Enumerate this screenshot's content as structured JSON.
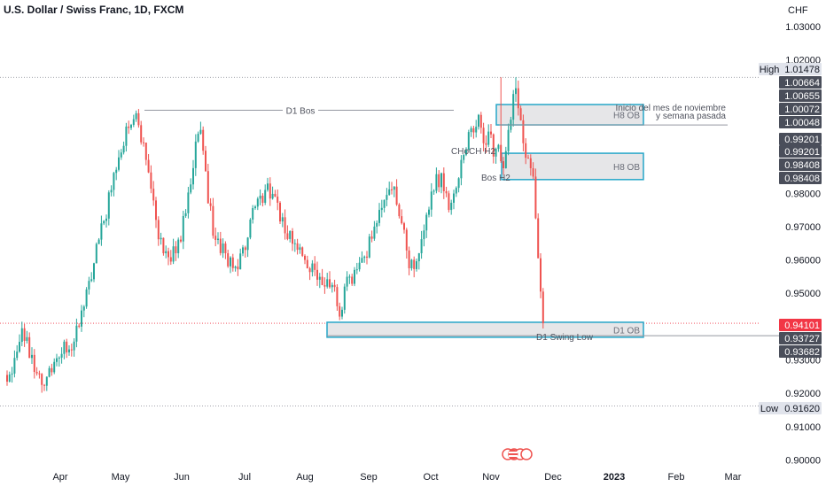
{
  "header": {
    "title": "U.S. Dollar / Swiss Franc, 1D, FXCM",
    "currency": "CHF"
  },
  "colors": {
    "up": "#26a69a",
    "down": "#ef5350",
    "box_border": "#26a6c8",
    "box_fill": "#e6e6e8",
    "current_price": "#f23645",
    "label_dark": "#4a4e5a"
  },
  "chart_data": {
    "type": "candlestick",
    "y_axis": {
      "min": 0.9,
      "max": 1.03,
      "ticks": [
        1.03,
        1.02,
        0.98,
        0.97,
        0.96,
        0.95,
        0.93,
        0.92,
        0.91,
        0.9
      ],
      "tick_labels": [
        "1.03000",
        "1.02000",
        "0.98000",
        "0.97000",
        "0.96000",
        "0.95000",
        "0.93000",
        "0.92000",
        "0.91000",
        "0.90000"
      ]
    },
    "x_axis": {
      "labels": [
        "Apr",
        "May",
        "Jun",
        "Jul",
        "Aug",
        "Sep",
        "Oct",
        "Nov",
        "Dec",
        "2023",
        "Feb",
        "Mar"
      ],
      "bold_labels": [
        "2023"
      ]
    },
    "anchors": [
      {
        "i": 0,
        "v": 0.9235
      },
      {
        "i": 6,
        "v": 0.9395
      },
      {
        "i": 10,
        "v": 0.9315
      },
      {
        "i": 14,
        "v": 0.9225
      },
      {
        "i": 20,
        "v": 0.9305
      },
      {
        "i": 27,
        "v": 0.9355
      },
      {
        "i": 35,
        "v": 0.959
      },
      {
        "i": 42,
        "v": 0.981
      },
      {
        "i": 48,
        "v": 1.0
      },
      {
        "i": 52,
        "v": 1.004
      },
      {
        "i": 56,
        "v": 0.99
      },
      {
        "i": 60,
        "v": 0.972
      },
      {
        "i": 63,
        "v": 0.962
      },
      {
        "i": 68,
        "v": 0.962
      },
      {
        "i": 72,
        "v": 0.974
      },
      {
        "i": 76,
        "v": 0.9955
      },
      {
        "i": 78,
        "v": 0.999
      },
      {
        "i": 81,
        "v": 0.977
      },
      {
        "i": 84,
        "v": 0.966
      },
      {
        "i": 88,
        "v": 0.962
      },
      {
        "i": 92,
        "v": 0.958
      },
      {
        "i": 96,
        "v": 0.963
      },
      {
        "i": 100,
        "v": 0.976
      },
      {
        "i": 104,
        "v": 0.981
      },
      {
        "i": 108,
        "v": 0.979
      },
      {
        "i": 112,
        "v": 0.968
      },
      {
        "i": 116,
        "v": 0.965
      },
      {
        "i": 120,
        "v": 0.96
      },
      {
        "i": 124,
        "v": 0.957
      },
      {
        "i": 128,
        "v": 0.952
      },
      {
        "i": 131,
        "v": 0.9525
      },
      {
        "i": 134,
        "v": 0.943
      },
      {
        "i": 136,
        "v": 0.952
      },
      {
        "i": 140,
        "v": 0.957
      },
      {
        "i": 144,
        "v": 0.961
      },
      {
        "i": 148,
        "v": 0.97
      },
      {
        "i": 152,
        "v": 0.978
      },
      {
        "i": 156,
        "v": 0.982
      },
      {
        "i": 159,
        "v": 0.971
      },
      {
        "i": 162,
        "v": 0.9575
      },
      {
        "i": 166,
        "v": 0.962
      },
      {
        "i": 171,
        "v": 0.9805
      },
      {
        "i": 175,
        "v": 0.986
      },
      {
        "i": 178,
        "v": 0.975
      },
      {
        "i": 182,
        "v": 0.9845
      },
      {
        "i": 187,
        "v": 0.9995
      },
      {
        "i": 190,
        "v": 1.0035
      },
      {
        "i": 192,
        "v": 0.995
      },
      {
        "i": 194,
        "v": 0.9985
      },
      {
        "i": 196,
        "v": 0.991
      },
      {
        "i": 198,
        "v": 0.9945
      },
      {
        "i": 200,
        "v": 0.9875
      },
      {
        "i": 202,
        "v": 0.999
      },
      {
        "i": 205,
        "v": 1.0115
      },
      {
        "i": 206,
        "v": 1.0055
      },
      {
        "i": 208,
        "v": 0.995
      },
      {
        "i": 210,
        "v": 0.9905
      },
      {
        "i": 212,
        "v": 0.985
      },
      {
        "i": 213,
        "v": 0.9725
      },
      {
        "i": 214,
        "v": 0.9605
      },
      {
        "i": 215,
        "v": 0.9505
      },
      {
        "i": 216,
        "v": 0.941
      }
    ],
    "special_highs": [
      {
        "i": 199,
        "v": 1.0148
      },
      {
        "i": 205,
        "v": 1.0148
      }
    ],
    "level_labels": [
      {
        "text": "High",
        "value": "1.01478",
        "style": "light"
      },
      {
        "value": "1.00664",
        "style": "dark"
      },
      {
        "value": "1.00655",
        "style": "dark"
      },
      {
        "value": "1.00072",
        "style": "dark"
      },
      {
        "value": "1.00048",
        "style": "dark"
      },
      {
        "value": "0.99201",
        "style": "dark"
      },
      {
        "value": "0.99201",
        "style": "dark"
      },
      {
        "value": "0.98408",
        "style": "dark"
      },
      {
        "value": "0.98408",
        "style": "dark"
      },
      {
        "value": "0.94101",
        "style": "red"
      },
      {
        "value": "0.93727",
        "style": "dark"
      },
      {
        "value": "0.93682",
        "style": "dark"
      },
      {
        "text": "Low",
        "value": "0.91620",
        "style": "light"
      }
    ],
    "zones": [
      {
        "label": "H8 OB",
        "top": 1.0066,
        "bottom": 1.0005
      },
      {
        "label": "H8 OB",
        "top": 0.992,
        "bottom": 0.9841
      },
      {
        "label": "D1 OB",
        "top": 0.9413,
        "bottom": 0.9368
      }
    ],
    "annotations": {
      "d1_bos": "D1 Bos",
      "choch": "CHoCH H2",
      "bos_h2": "Bos H2",
      "note_line1": "Inicio del mes de noviembre",
      "note_line2": "y semana pasada",
      "swing_low": "D1 Swing Low"
    },
    "levels": {
      "high": 1.01478,
      "low": 0.9162,
      "current": 0.94101,
      "d1_bos": 1.0049,
      "swing_low": 0.93727,
      "note": 1.0005
    }
  }
}
